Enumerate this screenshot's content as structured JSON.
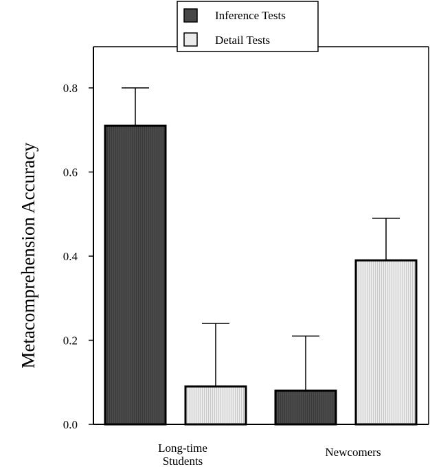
{
  "chart_data": {
    "type": "bar",
    "categories": [
      "Long-time\nStudents",
      "Newcomers"
    ],
    "series": [
      {
        "name": "Inference Tests",
        "values": [
          0.71,
          0.08
        ],
        "error": [
          0.09,
          0.13
        ],
        "color": "#474747"
      },
      {
        "name": "Detail Tests",
        "values": [
          0.09,
          0.39
        ],
        "error": [
          0.15,
          0.1
        ],
        "color": "#ebebeb"
      }
    ],
    "title": "",
    "xlabel": "",
    "ylabel": "Metacomprehension Accuracy",
    "ylim": [
      0,
      0.8
    ],
    "yticks": [
      "0.0",
      "0.2",
      "0.4",
      "0.6",
      "0.8"
    ],
    "legend_position": "top-center",
    "grid": false
  }
}
